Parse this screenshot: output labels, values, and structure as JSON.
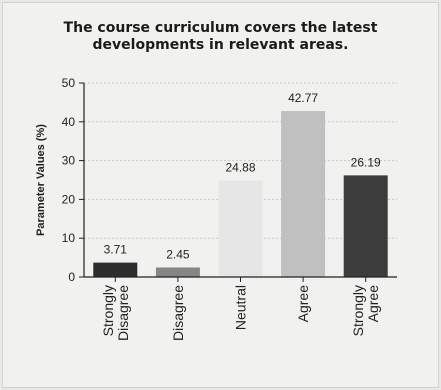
{
  "chart_data": {
    "type": "bar",
    "title_lines": [
      "The course curriculum covers the latest",
      "developments in relevant areas."
    ],
    "xlabel": "",
    "ylabel": "Parameter Values (%)",
    "ylim": [
      0,
      50
    ],
    "yticks": [
      "0",
      "10",
      "20",
      "30",
      "40",
      "50"
    ],
    "grid": true,
    "categories": [
      [
        "Strongly",
        "Disagree"
      ],
      [
        "Disagree"
      ],
      [
        "Neutral"
      ],
      [
        "Agree"
      ],
      [
        "Strongly",
        "Agree"
      ]
    ],
    "values": [
      3.71,
      2.45,
      24.88,
      42.77,
      26.19
    ],
    "value_labels": [
      "3.71",
      "2.45",
      "24.88",
      "42.77",
      "26.19"
    ],
    "colors": [
      "#2c2c2c",
      "#868686",
      "#e6e6e6",
      "#c0c0c0",
      "#3c3c3c"
    ]
  }
}
